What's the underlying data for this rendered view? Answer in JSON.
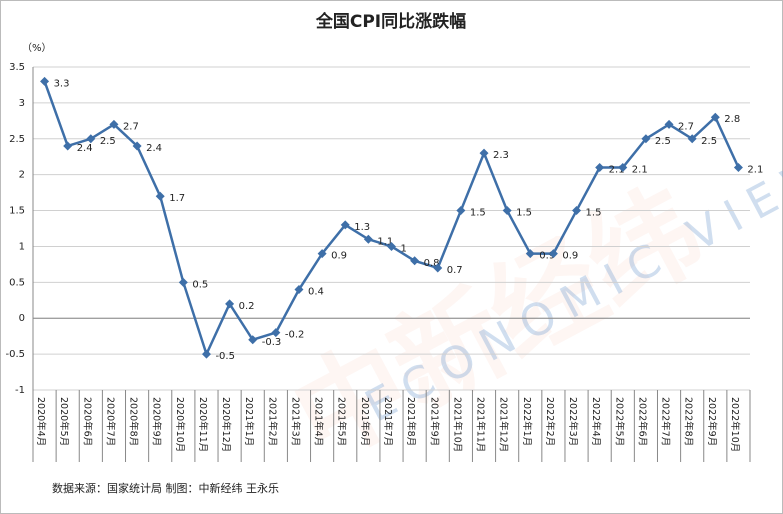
{
  "chart_data": {
    "type": "line",
    "title": "全国CPI同比涨跌幅",
    "y_unit": "（%）",
    "source": "数据来源：国家统计局  制图：中新经纬 王永乐",
    "watermark": [
      "中新经纬",
      "ECONOMIC VIEW"
    ],
    "categories": [
      "2020年4月",
      "2020年5月",
      "2020年6月",
      "2020年7月",
      "2020年8月",
      "2020年9月",
      "2020年10月",
      "2020年11月",
      "2020年12月",
      "2021年1月",
      "2021年2月",
      "2021年3月",
      "2021年4月",
      "2021年5月",
      "2021年6月",
      "2021年7月",
      "2021年8月",
      "2021年9月",
      "2021年10月",
      "2021年11月",
      "2021年12月",
      "2022年1月",
      "2022年2月",
      "2022年3月",
      "2022年4月",
      "2022年5月",
      "2022年6月",
      "2022年7月",
      "2022年8月",
      "2022年9月",
      "2022年10月"
    ],
    "values": [
      3.3,
      2.4,
      2.5,
      2.7,
      2.4,
      1.7,
      0.5,
      -0.5,
      0.2,
      -0.3,
      -0.2,
      0.4,
      0.9,
      1.3,
      1.1,
      1,
      0.8,
      0.7,
      1.5,
      2.3,
      1.5,
      0.9,
      0.9,
      1.5,
      2.1,
      2.1,
      2.5,
      2.7,
      2.5,
      2.8,
      2.1
    ],
    "color": "#3e6fa8",
    "ylim": [
      -1,
      3.5
    ],
    "yticks": [
      -1,
      -0.5,
      0,
      0.5,
      1,
      1.5,
      2,
      2.5,
      3,
      3.5
    ],
    "grid": true
  }
}
